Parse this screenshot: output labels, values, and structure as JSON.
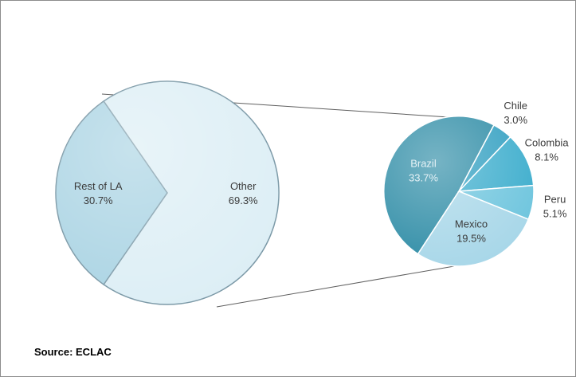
{
  "source": "Source: ECLAC",
  "chart_data": [
    {
      "type": "pie",
      "slices": [
        {
          "label": "Rest of LA",
          "value": 30.7,
          "value_label": "30.7%",
          "color": "#a9d3e3"
        },
        {
          "label": "Other",
          "value": 69.3,
          "value_label": "69.3%",
          "color": "#dceef5"
        }
      ]
    },
    {
      "type": "pie",
      "slices": [
        {
          "label": "Brazil",
          "value": 33.7,
          "value_label": "33.7%",
          "color": "#2c8ba5"
        },
        {
          "label": "Chile",
          "value": 3.0,
          "value_label": "3.0%",
          "color": "#2f9ec0"
        },
        {
          "label": "Colombia",
          "value": 8.1,
          "value_label": "8.1%",
          "color": "#3aaccc"
        },
        {
          "label": "Peru",
          "value": 5.1,
          "value_label": "5.1%",
          "color": "#6cc4dd"
        },
        {
          "label": "Mexico",
          "value": 19.5,
          "value_label": "19.5%",
          "color": "#a6d6e8"
        }
      ]
    }
  ]
}
